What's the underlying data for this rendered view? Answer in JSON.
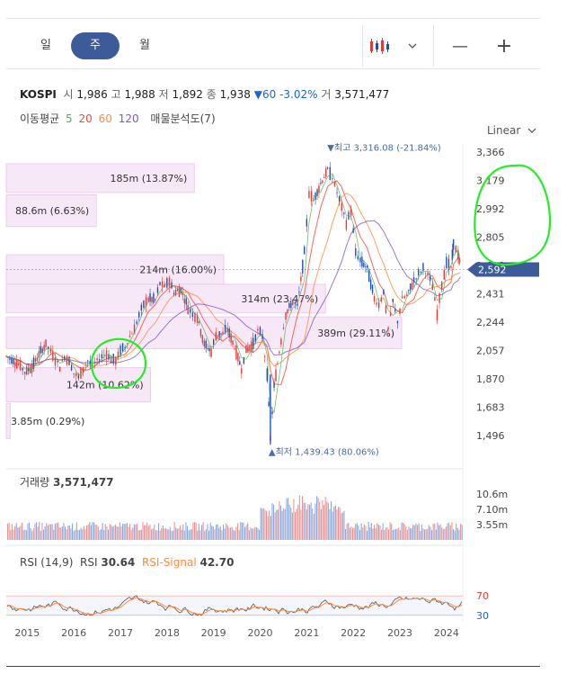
{
  "tabs": [
    {
      "label": "일",
      "active": false
    },
    {
      "label": "주",
      "active": true
    },
    {
      "label": "월",
      "active": false
    }
  ],
  "toolbar": {
    "chart_type_icon": "candlestick-icon",
    "dropdown_icon": "chevron-down-icon",
    "zoom_out": "—",
    "zoom_in": "+"
  },
  "info": {
    "name": "KOSPI",
    "open_label": "시",
    "open": "1,986",
    "high_label": "고",
    "high": "1,988",
    "low_label": "저",
    "low": "1,892",
    "close_label": "종",
    "close": "1,938",
    "change": "▼60 -3.02%",
    "volume_label": "거",
    "volume": "3,571,477"
  },
  "moving_average": {
    "label": "이동평균",
    "periods": [
      {
        "value": "5",
        "color": "#4caf50"
      },
      {
        "value": "20",
        "color": "#f44336"
      },
      {
        "value": "60",
        "color": "#ff8a3d"
      },
      {
        "value": "120",
        "color": "#7e57c2"
      }
    ],
    "profile_label": "매물분석도(7)"
  },
  "scale_label": "Linear",
  "chart_data": {
    "type": "line",
    "x_ticks": [
      "2015",
      "2016",
      "2017",
      "2018",
      "2019",
      "2020",
      "2021",
      "2022",
      "2023",
      "2024"
    ],
    "y_ticks": [
      3366,
      3179,
      2992,
      2805,
      2618,
      2431,
      2244,
      2057,
      1870,
      1683,
      1496
    ],
    "y_tick_labels": [
      "3,366",
      "3,179",
      "2,992",
      "2,805",
      "2,618",
      "2,431",
      "2,244",
      "2,057",
      "1,870",
      "1,683",
      "1,496"
    ],
    "ylim": [
      1420,
      3420
    ],
    "xlim": [
      2014.55,
      2024.35
    ],
    "current_price_label": "2,592",
    "current_price": 2592,
    "max_label": "▼최고 3,316.08 (-21.84%)",
    "max_point": {
      "x": 2021.48,
      "y": 3316.08
    },
    "min_label": "▲최저 1,439.43 (80.06%)",
    "min_point": {
      "x": 2020.22,
      "y": 1439.43
    },
    "close_series": [
      [
        2014.55,
        2020
      ],
      [
        2014.7,
        1990
      ],
      [
        2014.85,
        1960
      ],
      [
        2014.95,
        1915
      ],
      [
        2015.1,
        1950
      ],
      [
        2015.25,
        2030
      ],
      [
        2015.4,
        2100
      ],
      [
        2015.5,
        2050
      ],
      [
        2015.6,
        2000
      ],
      [
        2015.7,
        1950
      ],
      [
        2015.8,
        2020
      ],
      [
        2015.9,
        1990
      ],
      [
        2016.0,
        1910
      ],
      [
        2016.1,
        1880
      ],
      [
        2016.2,
        1940
      ],
      [
        2016.3,
        1990
      ],
      [
        2016.4,
        1960
      ],
      [
        2016.5,
        1990
      ],
      [
        2016.6,
        2020
      ],
      [
        2016.7,
        2040
      ],
      [
        2016.8,
        2000
      ],
      [
        2016.9,
        1990
      ],
      [
        2017.0,
        2060
      ],
      [
        2017.1,
        2080
      ],
      [
        2017.2,
        2150
      ],
      [
        2017.3,
        2200
      ],
      [
        2017.4,
        2290
      ],
      [
        2017.5,
        2360
      ],
      [
        2017.6,
        2400
      ],
      [
        2017.75,
        2390
      ],
      [
        2017.85,
        2500
      ],
      [
        2017.95,
        2480
      ],
      [
        2018.05,
        2520
      ],
      [
        2018.15,
        2440
      ],
      [
        2018.3,
        2460
      ],
      [
        2018.45,
        2340
      ],
      [
        2018.55,
        2300
      ],
      [
        2018.65,
        2280
      ],
      [
        2018.8,
        2100
      ],
      [
        2018.95,
        2050
      ],
      [
        2019.05,
        2160
      ],
      [
        2019.2,
        2170
      ],
      [
        2019.3,
        2200
      ],
      [
        2019.45,
        2080
      ],
      [
        2019.6,
        1940
      ],
      [
        2019.7,
        2060
      ],
      [
        2019.85,
        2100
      ],
      [
        2019.95,
        2190
      ],
      [
        2020.05,
        2150
      ],
      [
        2020.15,
        1900
      ],
      [
        2020.22,
        1480
      ],
      [
        2020.3,
        1820
      ],
      [
        2020.45,
        2130
      ],
      [
        2020.55,
        2300
      ],
      [
        2020.7,
        2380
      ],
      [
        2020.8,
        2350
      ],
      [
        2020.95,
        2700
      ],
      [
        2021.05,
        3100
      ],
      [
        2021.15,
        3050
      ],
      [
        2021.3,
        3160
      ],
      [
        2021.45,
        3250
      ],
      [
        2021.55,
        3200
      ],
      [
        2021.65,
        3100
      ],
      [
        2021.75,
        3000
      ],
      [
        2021.85,
        2900
      ],
      [
        2021.95,
        2980
      ],
      [
        2022.05,
        2700
      ],
      [
        2022.15,
        2650
      ],
      [
        2022.3,
        2600
      ],
      [
        2022.45,
        2400
      ],
      [
        2022.55,
        2360
      ],
      [
        2022.65,
        2450
      ],
      [
        2022.75,
        2200
      ],
      [
        2022.85,
        2380
      ],
      [
        2022.95,
        2250
      ],
      [
        2023.05,
        2400
      ],
      [
        2023.15,
        2420
      ],
      [
        2023.3,
        2520
      ],
      [
        2023.4,
        2560
      ],
      [
        2023.5,
        2600
      ],
      [
        2023.6,
        2560
      ],
      [
        2023.7,
        2480
      ],
      [
        2023.8,
        2300
      ],
      [
        2023.9,
        2500
      ],
      [
        2024.0,
        2640
      ],
      [
        2024.1,
        2600
      ],
      [
        2024.15,
        2760
      ],
      [
        2024.25,
        2690
      ],
      [
        2024.3,
        2592
      ]
    ],
    "volume_profile": [
      {
        "label": "185m (13.87%)",
        "low": 3100,
        "high": 3290,
        "value": 185
      },
      {
        "label": "88.6m (6.63%)",
        "low": 2875,
        "high": 3085,
        "value": 88.6
      },
      {
        "label": "214m (16.00%)",
        "low": 2495,
        "high": 2690,
        "value": 214
      },
      {
        "label": "314m (23.47%)",
        "low": 2305,
        "high": 2495,
        "value": 314
      },
      {
        "label": "389m (29.11%)",
        "low": 2070,
        "high": 2280,
        "value": 389
      },
      {
        "label": "142m (10.62%)",
        "low": 1720,
        "high": 1945,
        "value": 142
      },
      {
        "label": "3.85m (0.29%)",
        "low": 1475,
        "high": 1710,
        "value": 3.85
      }
    ]
  },
  "volume_panel": {
    "title": "거래량",
    "value": "3,571,477",
    "ticks": [
      "10.6m",
      "7.10m",
      "3.55m"
    ]
  },
  "rsi_panel": {
    "params": "RSI (14,9)",
    "rsi_label": "RSI",
    "rsi_value": "30.64",
    "signal_label": "RSI-Signal",
    "signal_value": "42.70",
    "upper": "70",
    "lower": "30"
  }
}
